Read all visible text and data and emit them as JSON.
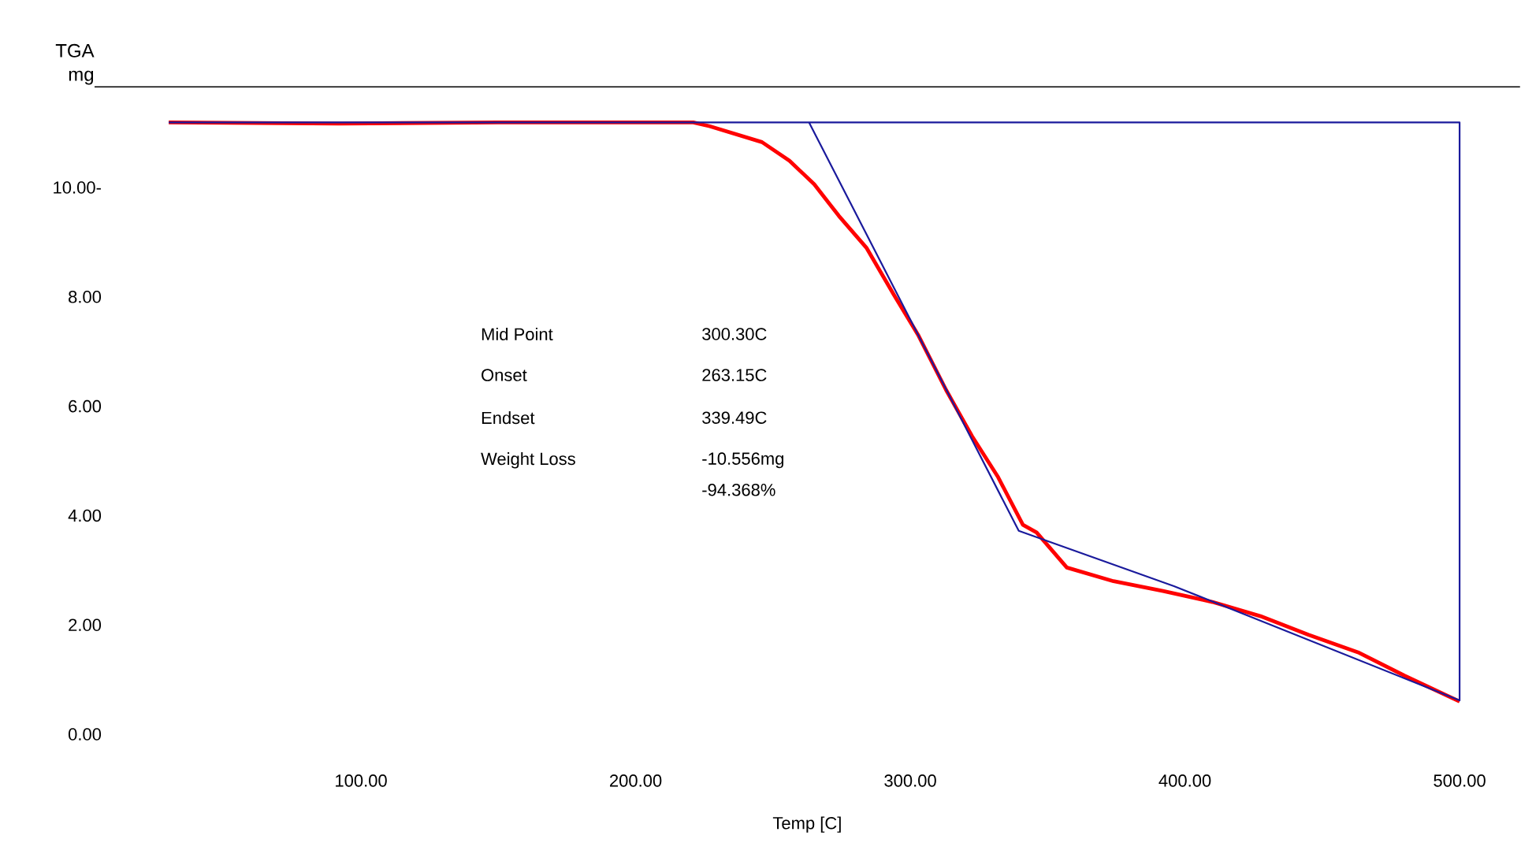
{
  "chart_data": {
    "type": "line",
    "ylabel": "TGA mg",
    "xlabel": "Temp [C]",
    "xlim": [
      3,
      522
    ],
    "ylim": [
      0,
      11.84
    ],
    "xticks": [
      {
        "value": 100,
        "label": "100.00"
      },
      {
        "value": 200,
        "label": "200.00"
      },
      {
        "value": 300,
        "label": "300.00"
      },
      {
        "value": 400,
        "label": "400.00"
      },
      {
        "value": 500,
        "label": "500.00"
      }
    ],
    "yticks": [
      {
        "value": 0,
        "label": "0.00"
      },
      {
        "value": 2,
        "label": "2.00"
      },
      {
        "value": 4,
        "label": "4.00"
      },
      {
        "value": 6,
        "label": "6.00"
      },
      {
        "value": 8,
        "label": "8.00"
      },
      {
        "value": 10,
        "label": "10.00-"
      }
    ],
    "series": [
      {
        "color": "#ff0000",
        "x": [
          30,
          92,
          150,
          221,
          227,
          246,
          256,
          265,
          274,
          284,
          294,
          303,
          313,
          322.5,
          332,
          341,
          346,
          357,
          374,
          392,
          410,
          427.5,
          445,
          463,
          480,
          500
        ],
        "values": [
          11.19,
          11.17,
          11.19,
          11.19,
          11.12,
          10.83,
          10.49,
          10.06,
          9.48,
          8.9,
          8.04,
          7.29,
          6.3,
          5.45,
          4.7,
          3.83,
          3.69,
          3.05,
          2.8,
          2.62,
          2.42,
          2.16,
          1.82,
          1.5,
          1.07,
          0.6
        ]
      },
      {
        "color": "#1a1a9c",
        "x": [
          30,
          263.15,
          339.49,
          396,
          500,
          500,
          263.15
        ],
        "values": [
          11.19,
          11.19,
          3.72,
          2.71,
          0.62,
          11.19,
          11.19
        ]
      }
    ],
    "annotations": [
      "Mid Point",
      "300.30C",
      "Onset",
      "263.15C",
      "Endset",
      "339.49C",
      "Weight Loss",
      "-10.556mg",
      "-94.368%"
    ]
  }
}
